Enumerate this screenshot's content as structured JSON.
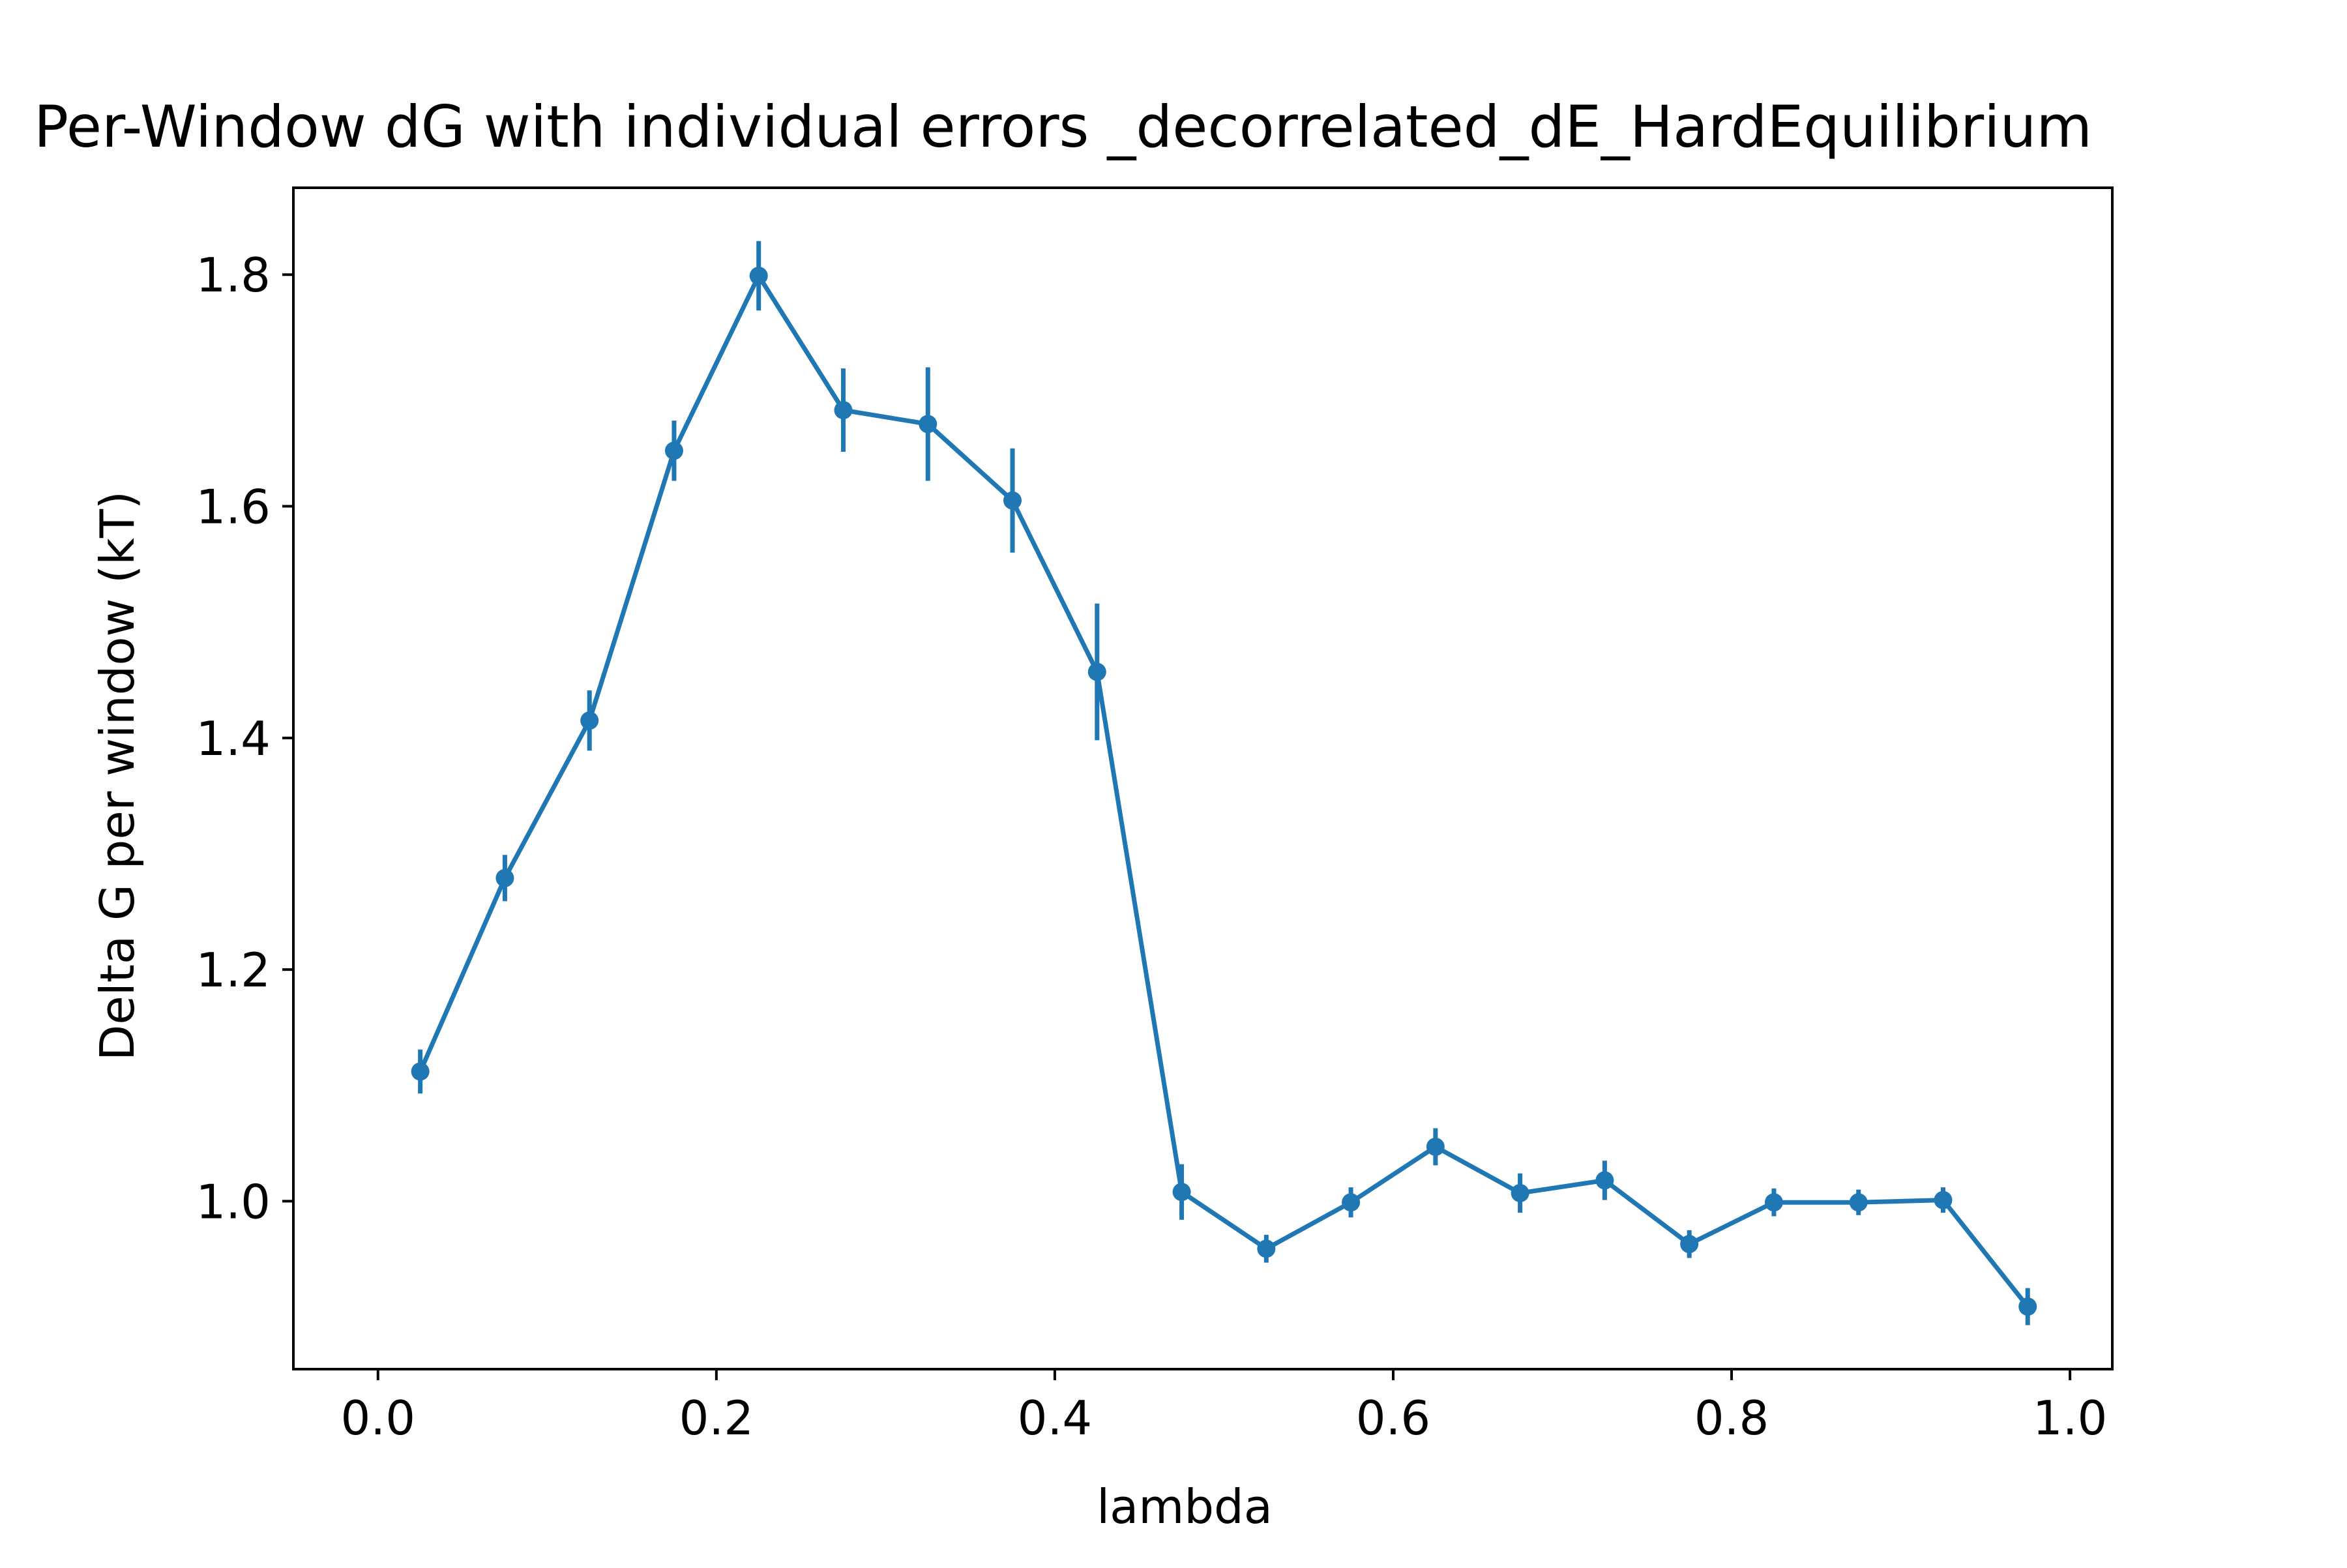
{
  "chart_data": {
    "type": "line",
    "title": "Per-Window dG with individual errors _decorrelated_dE_HardEquilibrium",
    "xlabel": "lambda",
    "ylabel": "Delta G per window (kT)",
    "xlim": [
      -0.05,
      1.025
    ],
    "ylim": [
      0.855,
      1.875
    ],
    "xticks": [
      0.0,
      0.2,
      0.4,
      0.6,
      0.8,
      1.0
    ],
    "xtick_labels": [
      "0.0",
      "0.2",
      "0.4",
      "0.6",
      "0.8",
      "1.0"
    ],
    "yticks": [
      1.0,
      1.2,
      1.4,
      1.6,
      1.8
    ],
    "ytick_labels": [
      "1.0",
      "1.2",
      "1.4",
      "1.6",
      "1.8"
    ],
    "grid": false,
    "color": "#1f77b4",
    "series": [
      {
        "x": [
          0.025,
          0.075,
          0.125,
          0.175,
          0.225,
          0.275,
          0.325,
          0.375,
          0.425,
          0.475,
          0.525,
          0.575,
          0.625,
          0.675,
          0.725,
          0.775,
          0.825,
          0.875,
          0.925,
          0.975
        ],
        "y": [
          1.112,
          1.279,
          1.415,
          1.648,
          1.799,
          1.683,
          1.671,
          1.605,
          1.457,
          1.008,
          0.959,
          0.999,
          1.047,
          1.007,
          1.018,
          0.963,
          0.999,
          0.999,
          1.001,
          0.909
        ],
        "yerr": [
          0.019,
          0.02,
          0.026,
          0.026,
          0.03,
          0.036,
          0.049,
          0.045,
          0.059,
          0.024,
          0.012,
          0.013,
          0.016,
          0.017,
          0.017,
          0.012,
          0.012,
          0.011,
          0.011,
          0.016
        ]
      }
    ]
  }
}
